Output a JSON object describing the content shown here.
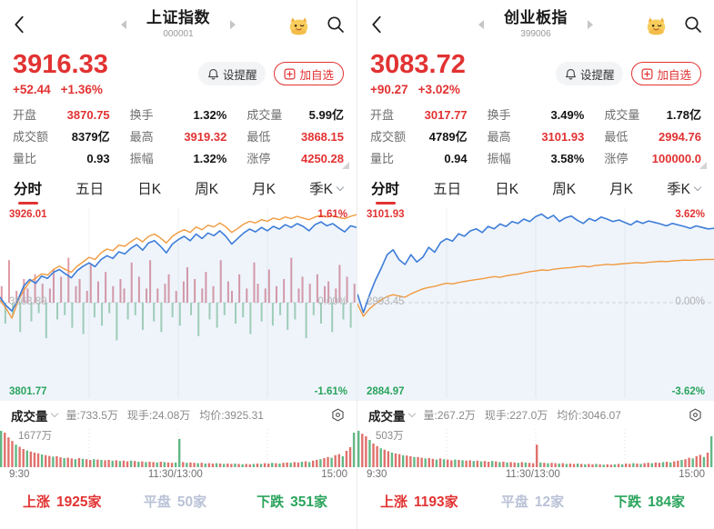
{
  "panels": [
    {
      "header": {
        "title": "上证指数",
        "code": "000001"
      },
      "price": {
        "value": "3916.33",
        "change": "+52.44",
        "change_pct": "+1.36%"
      },
      "actions": {
        "alert": "设提醒",
        "add": "加自选"
      },
      "stats": [
        {
          "label": "开盘",
          "value": "3870.75",
          "tone": "red"
        },
        {
          "label": "换手",
          "value": "1.32%",
          "tone": "dark"
        },
        {
          "label": "成交量",
          "value": "5.99亿",
          "tone": "dark"
        },
        {
          "label": "成交额",
          "value": "8379亿",
          "tone": "dark"
        },
        {
          "label": "最高",
          "value": "3919.32",
          "tone": "red"
        },
        {
          "label": "最低",
          "value": "3868.15",
          "tone": "red"
        },
        {
          "label": "量比",
          "value": "0.93",
          "tone": "dark"
        },
        {
          "label": "振幅",
          "value": "1.32%",
          "tone": "dark"
        },
        {
          "label": "涨停",
          "value": "4250.28",
          "tone": "red"
        }
      ],
      "tabs": [
        {
          "label": "分时"
        },
        {
          "label": "五日"
        },
        {
          "label": "日K"
        },
        {
          "label": "周K"
        },
        {
          "label": "月K"
        },
        {
          "label": "季K"
        }
      ],
      "chart": {
        "type": "line",
        "labels": {
          "high": "3926.01",
          "high_pct": "1.61%",
          "mid": "3863.89",
          "mid_pct": "0.00%",
          "low": "3801.77",
          "low_pct": "-1.61%"
        },
        "max_pct": 1.61,
        "series": [
          {
            "name": "price",
            "color": "#3d7dd8",
            "values": [
              0.1,
              -0.05,
              -0.15,
              0.05,
              0.3,
              0.42,
              0.35,
              0.48,
              0.44,
              0.55,
              0.6,
              0.52,
              0.45,
              0.58,
              0.66,
              0.72,
              0.65,
              0.78,
              0.85,
              0.8,
              0.92,
              0.88,
              0.98,
              1.05,
              0.95,
              1.08,
              1.12,
              1.02,
              0.9,
              1.06,
              1.14,
              1.2,
              1.12,
              1.24,
              1.16,
              1.26,
              1.21,
              1.3,
              1.2,
              1.06,
              1.16,
              1.26,
              1.33,
              1.28,
              1.36,
              1.3,
              1.38,
              1.33,
              1.41,
              1.36,
              1.43,
              1.38,
              1.3,
              1.41,
              1.46,
              1.39,
              1.43,
              1.35,
              1.28,
              1.39,
              1.36
            ]
          },
          {
            "name": "avg",
            "color": "#f09a3e",
            "values": [
              0.05,
              -0.1,
              -0.28,
              0.02,
              0.22,
              0.38,
              0.44,
              0.52,
              0.5,
              0.6,
              0.66,
              0.6,
              0.55,
              0.66,
              0.74,
              0.82,
              0.78,
              0.9,
              0.97,
              0.94,
              1.04,
              1.02,
              1.1,
              1.17,
              1.1,
              1.2,
              1.24,
              1.17,
              1.08,
              1.2,
              1.27,
              1.32,
              1.27,
              1.37,
              1.32,
              1.4,
              1.37,
              1.44,
              1.37,
              1.27,
              1.34,
              1.42,
              1.47,
              1.44,
              1.5,
              1.47,
              1.53,
              1.5,
              1.55,
              1.52,
              1.56,
              1.53,
              1.5,
              1.55,
              1.58,
              1.55,
              1.57,
              1.54,
              1.52,
              1.56,
              1.59
            ]
          }
        ],
        "mid_bars": [
          0.35,
          -0.5,
          0.9,
          -0.3,
          0.25,
          -0.7,
          0.5,
          0.3,
          -0.45,
          0.6,
          -0.25,
          0.4,
          -0.85,
          0.3,
          0.7,
          -0.4,
          0.55,
          -0.3,
          0.95,
          -0.6,
          0.35,
          0.5,
          -0.75,
          0.25,
          0.8,
          -0.35,
          0.45,
          -0.55,
          0.65,
          -0.25,
          0.35,
          -0.9,
          0.5,
          0.3,
          -0.4,
          0.85,
          -0.3,
          0.55,
          -0.65,
          0.3,
          0.9,
          -0.45,
          0.3,
          -0.7,
          0.4,
          0.6,
          -0.35,
          0.25,
          -0.55,
          0.45,
          0.75,
          -0.3,
          0.5,
          -0.8,
          0.3,
          0.65,
          -0.4,
          0.35,
          -0.6,
          0.9,
          -0.3,
          0.45,
          0.25,
          -0.5,
          0.6,
          -0.35,
          0.3,
          -0.75,
          0.85,
          0.4,
          -0.45,
          0.3,
          0.7,
          -0.55,
          0.35,
          -0.3,
          0.5,
          -0.65,
          0.95,
          -0.4,
          0.3,
          0.55,
          -0.85,
          0.4,
          -0.3,
          0.6,
          -0.5,
          0.35,
          0.45,
          -0.7,
          0.3,
          0.8,
          -0.4,
          0.55,
          -0.6,
          0.4
        ]
      },
      "volume": {
        "name": "成交量",
        "metrics": [
          "量:733.5万",
          "现手:24.08万",
          "均价:3925.31"
        ],
        "max_label": "1677万",
        "times": [
          "9:30",
          "11:30/13:00",
          "15:00"
        ],
        "bars": [
          -1.0,
          0.95,
          0.82,
          0.72,
          -0.62,
          0.56,
          0.5,
          -0.46,
          0.43,
          0.4,
          0.38,
          -0.35,
          0.33,
          0.31,
          -0.29,
          0.3,
          0.27,
          -0.25,
          0.26,
          0.24,
          -0.22,
          0.25,
          -0.23,
          0.22,
          0.2,
          -0.22,
          0.21,
          -0.2,
          0.19,
          0.2,
          -0.18,
          0.19,
          -0.17,
          0.18,
          0.16,
          -0.18,
          0.17,
          -0.15,
          0.16,
          -0.14,
          0.15,
          0.14,
          -0.13,
          0.15,
          -0.14,
          0.13,
          0.12,
          -0.13,
          -0.78,
          0.14,
          -0.12,
          0.13,
          0.12,
          -0.11,
          0.12,
          -0.1,
          0.11,
          0.1,
          -0.11,
          0.1,
          -0.09,
          0.1,
          0.09,
          -0.1,
          0.09,
          -0.08,
          0.09,
          0.08,
          -0.09,
          0.1,
          -0.09,
          0.11,
          0.1,
          -0.12,
          0.11,
          -0.1,
          0.12,
          0.13,
          -0.12,
          0.14,
          0.13,
          -0.15,
          0.16,
          -0.14,
          0.18,
          0.2,
          -0.22,
          0.25,
          0.28,
          -0.26,
          0.33,
          0.36,
          -0.3,
          0.45,
          0.55,
          -0.95
        ]
      },
      "market": [
        {
          "label": "上涨",
          "count": "1925",
          "unit": "家"
        },
        {
          "label": "平盘",
          "count": "50",
          "unit": "家"
        },
        {
          "label": "下跌",
          "count": "351",
          "unit": "家"
        }
      ]
    },
    {
      "header": {
        "title": "创业板指",
        "code": "399006"
      },
      "price": {
        "value": "3083.72",
        "change": "+90.27",
        "change_pct": "+3.02%"
      },
      "actions": {
        "alert": "设提醒",
        "add": "加自选"
      },
      "stats": [
        {
          "label": "开盘",
          "value": "3017.77",
          "tone": "red"
        },
        {
          "label": "换手",
          "value": "3.49%",
          "tone": "dark"
        },
        {
          "label": "成交量",
          "value": "1.78亿",
          "tone": "dark"
        },
        {
          "label": "成交额",
          "value": "4789亿",
          "tone": "dark"
        },
        {
          "label": "最高",
          "value": "3101.93",
          "tone": "red"
        },
        {
          "label": "最低",
          "value": "2994.76",
          "tone": "red"
        },
        {
          "label": "量比",
          "value": "0.94",
          "tone": "dark"
        },
        {
          "label": "振幅",
          "value": "3.58%",
          "tone": "dark"
        },
        {
          "label": "涨停",
          "value": "100000.0",
          "tone": "red"
        }
      ],
      "tabs": [
        {
          "label": "分时"
        },
        {
          "label": "五日"
        },
        {
          "label": "日K"
        },
        {
          "label": "周K"
        },
        {
          "label": "月K"
        },
        {
          "label": "季K"
        }
      ],
      "chart": {
        "type": "line",
        "labels": {
          "high": "3101.93",
          "high_pct": "3.62%",
          "mid": "2993.45",
          "mid_pct": "0.00%",
          "low": "2884.97",
          "low_pct": "-3.62%"
        },
        "max_pct": 3.62,
        "series": [
          {
            "name": "price",
            "color": "#3d7dd8",
            "values": [
              0.35,
              -0.4,
              0.3,
              0.9,
              1.4,
              1.95,
              2.15,
              1.75,
              1.55,
              1.95,
              1.65,
              1.85,
              2.25,
              2.05,
              2.45,
              2.6,
              2.5,
              2.8,
              2.7,
              2.92,
              3.0,
              2.85,
              3.1,
              3.0,
              3.2,
              3.1,
              3.3,
              3.22,
              3.4,
              3.3,
              3.5,
              3.6,
              3.42,
              3.55,
              3.3,
              3.45,
              3.52,
              3.35,
              3.22,
              3.42,
              3.32,
              3.48,
              3.4,
              3.3,
              3.36,
              3.26,
              3.16,
              3.32,
              3.22,
              3.32,
              3.26,
              3.2,
              3.12,
              3.22,
              3.16,
              3.1,
              3.02,
              3.12,
              3.06,
              3.0,
              3.02
            ]
          },
          {
            "name": "avg",
            "color": "#f09a3e",
            "values": [
              -0.05,
              -0.55,
              -0.25,
              -0.05,
              0.12,
              0.25,
              0.32,
              0.27,
              0.22,
              0.36,
              0.46,
              0.56,
              0.62,
              0.66,
              0.73,
              0.79,
              0.76,
              0.82,
              0.86,
              0.9,
              0.94,
              0.97,
              1.02,
              1.06,
              1.03,
              1.09,
              1.13,
              1.16,
              1.21,
              1.26,
              1.29,
              1.33,
              1.31,
              1.36,
              1.39,
              1.41,
              1.43,
              1.46,
              1.49,
              1.46,
              1.51,
              1.53,
              1.56,
              1.54,
              1.57,
              1.59,
              1.61,
              1.63,
              1.61,
              1.64,
              1.66,
              1.68,
              1.67,
              1.69,
              1.71,
              1.73,
              1.72,
              1.74,
              1.75,
              1.76,
              1.76
            ]
          }
        ],
        "mid_bars": []
      },
      "volume": {
        "name": "成交量",
        "metrics": [
          "量:267.2万",
          "现手:227.0万",
          "均价:3046.07"
        ],
        "max_label": "503万",
        "times": [
          "9:30",
          "11:30/13:00",
          "15:00"
        ],
        "bars": [
          -1.0,
          0.92,
          0.85,
          -0.75,
          0.65,
          0.58,
          -0.52,
          0.48,
          0.44,
          -0.4,
          0.38,
          0.36,
          -0.33,
          0.32,
          0.3,
          -0.28,
          0.28,
          0.26,
          -0.24,
          0.25,
          0.23,
          -0.21,
          0.24,
          -0.22,
          0.21,
          0.19,
          -0.21,
          0.2,
          -0.19,
          0.18,
          0.19,
          -0.17,
          0.18,
          -0.16,
          0.17,
          0.15,
          -0.17,
          0.16,
          -0.14,
          0.15,
          -0.13,
          0.14,
          0.13,
          -0.12,
          0.14,
          -0.13,
          0.12,
          0.11,
          0.62,
          -0.13,
          0.12,
          -0.11,
          0.12,
          0.11,
          -0.1,
          0.11,
          -0.09,
          0.1,
          0.09,
          -0.1,
          0.09,
          -0.08,
          0.09,
          0.08,
          -0.09,
          0.08,
          -0.07,
          0.08,
          0.07,
          -0.08,
          0.09,
          -0.08,
          0.1,
          0.09,
          -0.11,
          0.1,
          -0.09,
          0.11,
          0.12,
          -0.11,
          0.13,
          0.12,
          -0.14,
          0.15,
          -0.13,
          0.16,
          0.18,
          -0.2,
          0.22,
          0.26,
          -0.24,
          0.3,
          0.34,
          -0.28,
          0.4,
          -0.85
        ]
      },
      "market": [
        {
          "label": "上涨",
          "count": "1193",
          "unit": "家"
        },
        {
          "label": "平盘",
          "count": "12",
          "unit": "家"
        },
        {
          "label": "下跌",
          "count": "184",
          "unit": "家"
        }
      ]
    }
  ]
}
